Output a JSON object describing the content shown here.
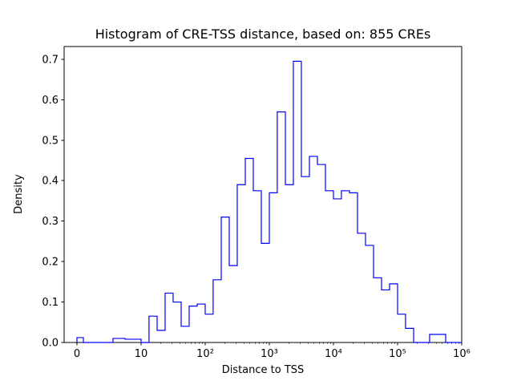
{
  "chart_data": {
    "type": "bar",
    "subtype": "histogram-step",
    "title": "Histogram of CRE-TSS distance, based on: 855 CREs",
    "xlabel": "Distance to TSS",
    "ylabel": "Density",
    "x_scale": "symlog",
    "x_linthresh": 10,
    "line_color": "#0000ff",
    "axis_color": "#000000",
    "background_color": "#ffffff",
    "ylim": [
      0,
      0.7315
    ],
    "xlim_labels": [
      "0",
      "1000000"
    ],
    "legend": "none",
    "grid": false,
    "x_ticks": [
      {
        "value": 0,
        "label": "0"
      },
      {
        "value": 10,
        "label": "10"
      },
      {
        "value": 100,
        "label": "10²"
      },
      {
        "value": 1000,
        "label": "10³"
      },
      {
        "value": 10000,
        "label": "10⁴"
      },
      {
        "value": 100000,
        "label": "10⁵"
      },
      {
        "value": 1000000,
        "label": "10⁶"
      }
    ],
    "x_minor_decades": [
      10,
      100,
      1000,
      10000,
      100000
    ],
    "y_ticks": [
      {
        "value": 0.0,
        "label": "0.0"
      },
      {
        "value": 0.1,
        "label": "0.1"
      },
      {
        "value": 0.2,
        "label": "0.2"
      },
      {
        "value": 0.3,
        "label": "0.3"
      },
      {
        "value": 0.4,
        "label": "0.4"
      },
      {
        "value": 0.5,
        "label": "0.5"
      },
      {
        "value": 0.6,
        "label": "0.6"
      },
      {
        "value": 0.7,
        "label": "0.7"
      }
    ],
    "bin_edges": [
      0,
      1,
      1.33,
      1.78,
      2.37,
      3.16,
      4.22,
      5.62,
      7.5,
      10,
      13.3,
      17.8,
      23.7,
      31.6,
      42.2,
      56.2,
      75,
      100,
      133,
      178,
      237,
      316,
      422,
      562,
      750,
      1000,
      1330,
      1780,
      2370,
      3160,
      4220,
      5620,
      7500,
      10000,
      13300,
      17800,
      23700,
      31600,
      42200,
      56200,
      75000,
      100000,
      133000,
      178000,
      237000,
      316000,
      422000,
      562000,
      750000,
      1000000
    ],
    "densities": [
      0.012,
      0,
      0,
      0,
      0,
      0,
      0,
      0.01,
      0.008,
      0,
      0.065,
      0.03,
      0.122,
      0.1,
      0.04,
      0.09,
      0.095,
      0.07,
      0.155,
      0.31,
      0.19,
      0.39,
      0.455,
      0.375,
      0.245,
      0.37,
      0.57,
      0.39,
      0.695,
      0.41,
      0.46,
      0.44,
      0.375,
      0.355,
      0.375,
      0.37,
      0.27,
      0.24,
      0.16,
      0.13,
      0.145,
      0.07,
      0.035,
      0,
      0,
      0.02,
      0.02,
      0,
      0
    ]
  }
}
